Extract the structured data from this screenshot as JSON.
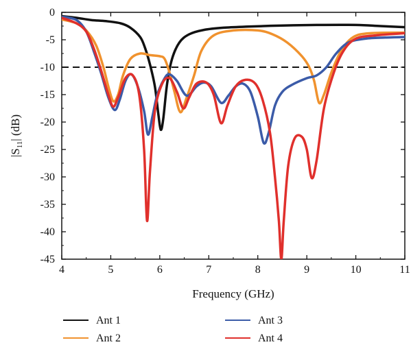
{
  "chart_data": {
    "type": "line",
    "title": "",
    "xlabel": "Frequency (GHz)",
    "ylabel_main": "|S",
    "ylabel_sub": "11",
    "ylabel_end": "| (dB)",
    "xlim": [
      4,
      11
    ],
    "ylim": [
      -45,
      0
    ],
    "xticks": [
      "4",
      "5",
      "6",
      "7",
      "8",
      "9",
      "10",
      "11"
    ],
    "yticks": [
      "0",
      "-5",
      "-10",
      "-15",
      "-20",
      "-25",
      "-30",
      "-35",
      "-40",
      "-45"
    ],
    "reference_line": -10,
    "grid": false,
    "legend_position": "bottom",
    "series": [
      {
        "name": "Ant 1",
        "color": "#111111",
        "points": [
          [
            4.0,
            -0.7
          ],
          [
            4.3,
            -1.0
          ],
          [
            4.6,
            -1.4
          ],
          [
            4.9,
            -1.6
          ],
          [
            5.2,
            -2.0
          ],
          [
            5.4,
            -2.8
          ],
          [
            5.6,
            -4.5
          ],
          [
            5.7,
            -6.5
          ],
          [
            5.8,
            -9.5
          ],
          [
            5.9,
            -13.5
          ],
          [
            5.97,
            -18.5
          ],
          [
            6.02,
            -21.4
          ],
          [
            6.07,
            -19.5
          ],
          [
            6.15,
            -13.0
          ],
          [
            6.25,
            -8.5
          ],
          [
            6.4,
            -5.5
          ],
          [
            6.6,
            -4.0
          ],
          [
            6.9,
            -3.2
          ],
          [
            7.3,
            -2.8
          ],
          [
            7.8,
            -2.6
          ],
          [
            8.5,
            -2.4
          ],
          [
            9.2,
            -2.3
          ],
          [
            10.0,
            -2.3
          ],
          [
            10.5,
            -2.5
          ],
          [
            11.0,
            -2.7
          ]
        ]
      },
      {
        "name": "Ant 2",
        "color": "#f0922e",
        "points": [
          [
            4.0,
            -1.3
          ],
          [
            4.3,
            -2.0
          ],
          [
            4.5,
            -3.3
          ],
          [
            4.7,
            -6.0
          ],
          [
            4.85,
            -10.0
          ],
          [
            4.95,
            -13.5
          ],
          [
            5.05,
            -16.2
          ],
          [
            5.15,
            -15.0
          ],
          [
            5.25,
            -11.5
          ],
          [
            5.4,
            -8.5
          ],
          [
            5.6,
            -7.5
          ],
          [
            5.8,
            -7.8
          ],
          [
            6.0,
            -8.0
          ],
          [
            6.1,
            -8.5
          ],
          [
            6.2,
            -11.0
          ],
          [
            6.3,
            -14.5
          ],
          [
            6.42,
            -18.2
          ],
          [
            6.55,
            -15.5
          ],
          [
            6.7,
            -11.5
          ],
          [
            6.85,
            -7.0
          ],
          [
            7.1,
            -4.2
          ],
          [
            7.5,
            -3.3
          ],
          [
            8.0,
            -3.3
          ],
          [
            8.3,
            -4.0
          ],
          [
            8.6,
            -5.5
          ],
          [
            8.9,
            -8.0
          ],
          [
            9.05,
            -10.0
          ],
          [
            9.15,
            -12.5
          ],
          [
            9.25,
            -16.5
          ],
          [
            9.35,
            -15.0
          ],
          [
            9.5,
            -11.0
          ],
          [
            9.7,
            -7.0
          ],
          [
            9.95,
            -4.5
          ],
          [
            10.3,
            -3.8
          ],
          [
            11.0,
            -3.7
          ]
        ]
      },
      {
        "name": "Ant 3",
        "color": "#3b5ba8",
        "points": [
          [
            4.0,
            -0.8
          ],
          [
            4.3,
            -1.4
          ],
          [
            4.5,
            -3.5
          ],
          [
            4.65,
            -7.0
          ],
          [
            4.8,
            -11.0
          ],
          [
            4.95,
            -15.5
          ],
          [
            5.08,
            -17.8
          ],
          [
            5.18,
            -16.0
          ],
          [
            5.3,
            -12.5
          ],
          [
            5.42,
            -11.3
          ],
          [
            5.55,
            -13.5
          ],
          [
            5.68,
            -18.0
          ],
          [
            5.76,
            -22.3
          ],
          [
            5.85,
            -19.0
          ],
          [
            5.95,
            -15.0
          ],
          [
            6.1,
            -12.0
          ],
          [
            6.2,
            -11.3
          ],
          [
            6.35,
            -12.5
          ],
          [
            6.55,
            -15.2
          ],
          [
            6.75,
            -13.5
          ],
          [
            6.9,
            -12.8
          ],
          [
            7.05,
            -13.5
          ],
          [
            7.25,
            -16.5
          ],
          [
            7.4,
            -15.2
          ],
          [
            7.55,
            -13.5
          ],
          [
            7.7,
            -13.0
          ],
          [
            7.85,
            -14.5
          ],
          [
            8.0,
            -19.0
          ],
          [
            8.12,
            -23.8
          ],
          [
            8.22,
            -22.0
          ],
          [
            8.35,
            -17.0
          ],
          [
            8.5,
            -14.5
          ],
          [
            8.7,
            -13.2
          ],
          [
            9.0,
            -12.0
          ],
          [
            9.2,
            -11.5
          ],
          [
            9.4,
            -10.0
          ],
          [
            9.6,
            -7.5
          ],
          [
            9.85,
            -5.5
          ],
          [
            10.2,
            -4.8
          ],
          [
            10.6,
            -4.6
          ],
          [
            11.0,
            -4.5
          ]
        ]
      },
      {
        "name": "Ant 4",
        "color": "#e0302c",
        "points": [
          [
            4.0,
            -1.0
          ],
          [
            4.3,
            -2.0
          ],
          [
            4.5,
            -3.5
          ],
          [
            4.65,
            -6.5
          ],
          [
            4.8,
            -10.5
          ],
          [
            4.95,
            -15.0
          ],
          [
            5.05,
            -17.2
          ],
          [
            5.15,
            -15.5
          ],
          [
            5.3,
            -12.0
          ],
          [
            5.45,
            -11.5
          ],
          [
            5.58,
            -15.0
          ],
          [
            5.68,
            -25.0
          ],
          [
            5.74,
            -38.0
          ],
          [
            5.8,
            -29.0
          ],
          [
            5.9,
            -18.0
          ],
          [
            6.05,
            -13.0
          ],
          [
            6.2,
            -12.0
          ],
          [
            6.35,
            -14.5
          ],
          [
            6.48,
            -17.5
          ],
          [
            6.6,
            -15.5
          ],
          [
            6.75,
            -13.0
          ],
          [
            6.95,
            -12.8
          ],
          [
            7.1,
            -15.0
          ],
          [
            7.25,
            -20.2
          ],
          [
            7.38,
            -17.0
          ],
          [
            7.55,
            -13.5
          ],
          [
            7.75,
            -12.3
          ],
          [
            7.95,
            -13.0
          ],
          [
            8.1,
            -16.0
          ],
          [
            8.25,
            -22.0
          ],
          [
            8.35,
            -30.0
          ],
          [
            8.43,
            -38.0
          ],
          [
            8.48,
            -45.0
          ],
          [
            8.53,
            -38.0
          ],
          [
            8.62,
            -28.0
          ],
          [
            8.75,
            -23.0
          ],
          [
            8.9,
            -22.7
          ],
          [
            9.0,
            -25.0
          ],
          [
            9.1,
            -30.2
          ],
          [
            9.2,
            -27.0
          ],
          [
            9.35,
            -17.5
          ],
          [
            9.55,
            -11.0
          ],
          [
            9.75,
            -7.0
          ],
          [
            10.0,
            -4.8
          ],
          [
            10.4,
            -4.2
          ],
          [
            11.0,
            -3.8
          ]
        ]
      }
    ]
  }
}
